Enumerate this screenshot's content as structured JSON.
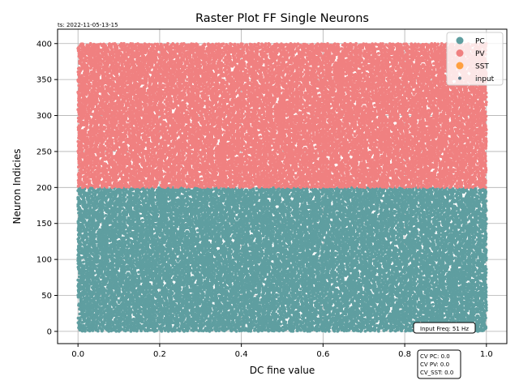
{
  "timestamp": "ts: 2022-11-05-13-15",
  "chart_data": {
    "type": "scatter",
    "title": "Raster Plot FF Single Neurons",
    "xlabel": "DC fine value",
    "ylabel": "Neuron Indicies",
    "xlim": [
      -0.05,
      1.05
    ],
    "ylim": [
      -17,
      420
    ],
    "xticks": [
      "0.0",
      "0.2",
      "0.4",
      "0.6",
      "0.8",
      "1.0"
    ],
    "yticks": [
      "0",
      "50",
      "100",
      "150",
      "200",
      "250",
      "300",
      "350",
      "400"
    ],
    "grid": true,
    "legend_position": "top-right",
    "legend": [
      {
        "name": "PC",
        "color": "#5f9ea0",
        "marker": "large-circle"
      },
      {
        "name": "PV",
        "color": "#f08080",
        "marker": "large-circle"
      },
      {
        "name": "SST",
        "color": "#ffa040",
        "marker": "large-circle"
      },
      {
        "name": "input",
        "color": "#5a7a8a",
        "marker": "small-dot"
      }
    ],
    "series": [
      {
        "name": "PC",
        "color": "#5f9ea0",
        "x_range": [
          0.0,
          1.0
        ],
        "neuron_index_range": [
          0,
          200
        ]
      },
      {
        "name": "PV",
        "color": "#f08080",
        "x_range": [
          0.0,
          1.0
        ],
        "neuron_index_range": [
          200,
          400
        ]
      },
      {
        "name": "SST",
        "color": "#ffa040",
        "x_range": [],
        "neuron_index_range": []
      }
    ],
    "annotations": {
      "input_freq": "Input Freq: 51 Hz",
      "cv_lines": [
        "CV PC: 0.0",
        "CV PV: 0.0",
        "CV_SST: 0.0"
      ]
    }
  }
}
